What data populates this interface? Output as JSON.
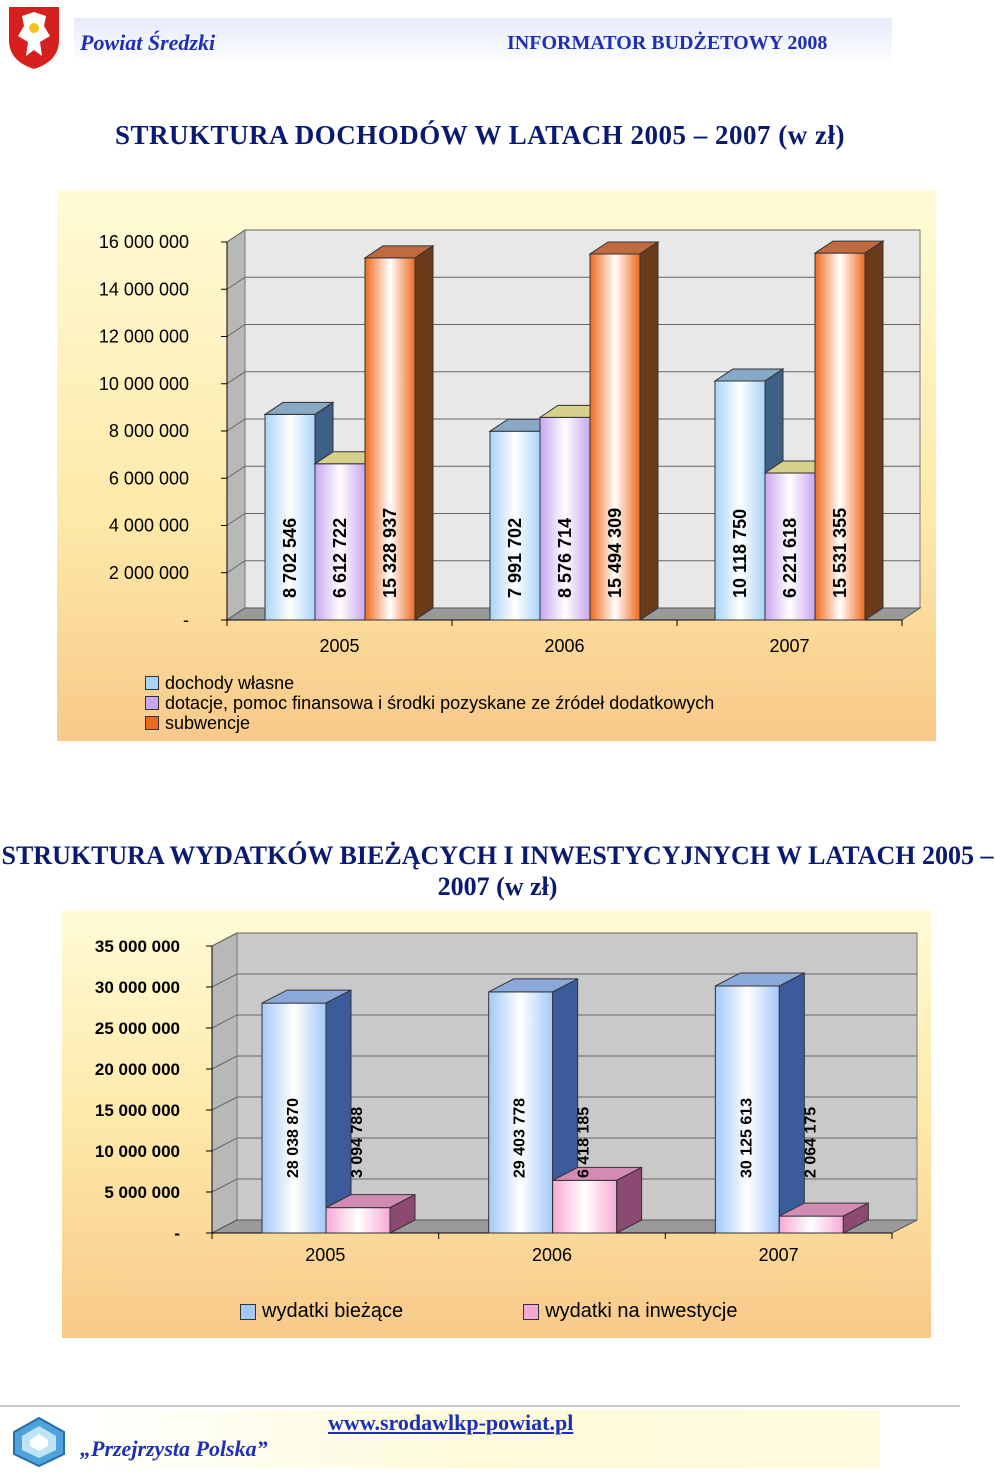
{
  "header": {
    "left_title": "Powiat Średzki",
    "right_title": "INFORMATOR BUDŻETOWY 2008"
  },
  "chart_data": [
    {
      "type": "bar",
      "title": "STRUKTURA DOCHODÓW W LATACH 2005 – 2007 (w zł)",
      "categories": [
        "2005",
        "2006",
        "2007"
      ],
      "series": [
        {
          "name": "dochody własne",
          "values": [
            8702546,
            7991702,
            10118750
          ],
          "labels": [
            "8 702 546",
            "7 991 702",
            "10 118 750"
          ]
        },
        {
          "name": "dotacje, pomoc finansowa i środki pozyskane ze źródeł dodatkowych",
          "values": [
            6612722,
            8576714,
            6221618
          ],
          "labels": [
            "6 612 722",
            "8 576 714",
            "6 221 618"
          ]
        },
        {
          "name": "subwencje",
          "values": [
            15328937,
            15494309,
            15531355
          ],
          "labels": [
            "15 328 937",
            "15 494 309",
            "15 531 355"
          ]
        }
      ],
      "yticks": [
        "-",
        "2 000 000",
        "4 000 000",
        "6 000 000",
        "8 000 000",
        "10 000 000",
        "12 000 000",
        "14 000 000",
        "16 000 000"
      ],
      "ylim": [
        0,
        16000000
      ],
      "legend_position": "bottom",
      "colors": {
        "front": [
          "#a9d3f7",
          "#c8a6f0",
          "#ee6a20"
        ],
        "top": [
          "#87a9c6",
          "#d6d08a",
          "#c06a40"
        ],
        "side": [
          "#3e5f86",
          "#6c4a94",
          "#6b3a1a"
        ]
      }
    },
    {
      "type": "bar",
      "title": "STRUKTURA WYDATKÓW BIEŻĄCYCH I INWESTYCYJNYCH W LATACH 2005 – 2007 (w zł)",
      "categories": [
        "2005",
        "2006",
        "2007"
      ],
      "series": [
        {
          "name": "wydatki bieżące",
          "values": [
            28038870,
            29403778,
            30125613
          ],
          "labels": [
            "28 038 870",
            "29 403 778",
            "30 125 613"
          ]
        },
        {
          "name": "wydatki na inwestycje",
          "values": [
            3094788,
            6418185,
            2064175
          ],
          "labels": [
            "3 094 788",
            "6 418 185",
            "2 064 175"
          ]
        }
      ],
      "yticks": [
        "-",
        "5 000 000",
        "10 000 000",
        "15 000 000",
        "20 000 000",
        "25 000 000",
        "30 000 000",
        "35 000 000"
      ],
      "ylim": [
        0,
        35000000
      ],
      "legend_position": "bottom",
      "colors": {
        "front": [
          "#a3c8f8",
          "#f6a9d3"
        ],
        "top": [
          "#8aa9d8",
          "#d28bb2"
        ],
        "side": [
          "#3c5b9a",
          "#8c4a72"
        ]
      }
    }
  ],
  "footer": {
    "left_text": "„Przejrzysta Polska”",
    "url": "www.srodawlkp-powiat.pl"
  }
}
